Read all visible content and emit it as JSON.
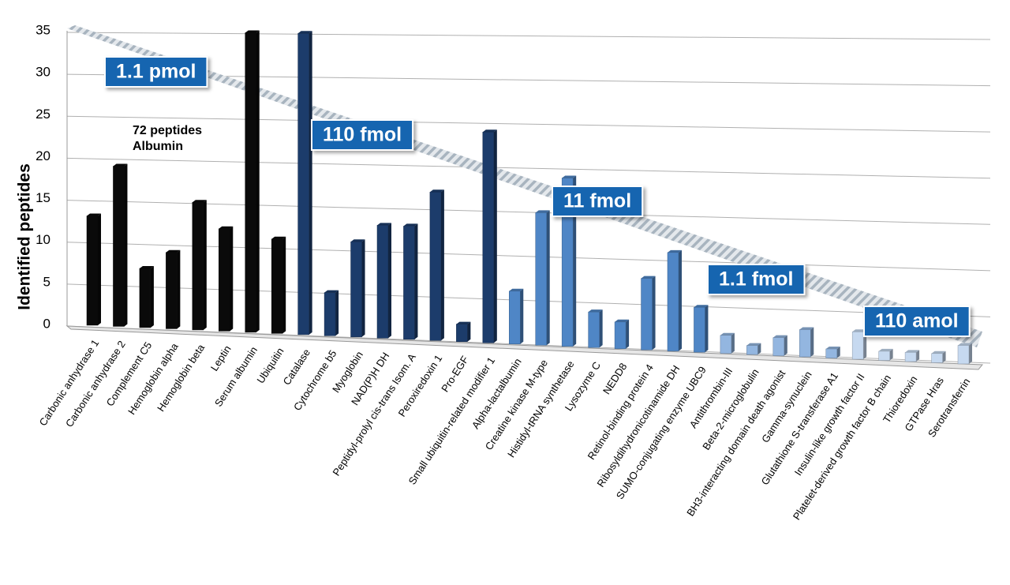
{
  "chart_data": {
    "type": "bar3d",
    "y_label": "Identified peptides",
    "annotation_lines": [
      "72 peptides",
      "Albumin"
    ],
    "categories": [
      "Carbonic anhydrase 1",
      "Carbonic anhydrase 2",
      "Complement C5",
      "Hemoglobin alpha",
      "Hemoglobin beta",
      "Leptin",
      "Serum albumin",
      "Ubiquitin",
      "Catalase",
      "Cytochrome b5",
      "Myoglobin",
      "NAD(P)H DH",
      "Peptidyl-prolyl cis-trans Isom. A",
      "Peroxiredoxin 1",
      "Pro-EGF",
      "Small ubiquitin-related modifier 1",
      "Alpha-lactalbumin",
      "Creatine kinase M-type",
      "Histidyl-tRNA synthetase",
      "Lysozyme C",
      "NEDD8",
      "Retinol-binding protein 4",
      "Ribosyldihydronicotinamide DH",
      "SUMO-conjugating enzyme UBC9",
      "Antithrombin-III",
      "Beta-2-microglobulin",
      "BH3-interacting domain death agonist",
      "Gamma-synuclein",
      "Glutathione S-transferase A1",
      "Insulin-like growth factor II",
      "Platelet-derived growth factor B chain",
      "Thioredoxin",
      "GTPase Hras",
      "Serotransferrin"
    ],
    "series": [
      {
        "name": "1.1 pmol",
        "color": "#0a0a0a",
        "values": [
          13,
          19,
          7,
          9,
          15,
          12,
          35,
          11,
          null,
          null,
          null,
          null,
          null,
          null,
          null,
          null,
          null,
          null,
          null,
          null,
          null,
          null,
          null,
          null,
          null,
          null,
          null,
          null,
          null,
          null,
          null,
          null,
          null,
          null
        ]
      },
      {
        "name": "110 fmol",
        "color": "#1c3c6b",
        "values": [
          null,
          null,
          null,
          null,
          null,
          null,
          null,
          null,
          35,
          5,
          11,
          13,
          13,
          17,
          2,
          24,
          null,
          null,
          null,
          null,
          null,
          null,
          null,
          null,
          null,
          null,
          null,
          null,
          null,
          null,
          null,
          null,
          null,
          null
        ]
      },
      {
        "name": "11 fmol",
        "color": "#4f86c6",
        "values": [
          null,
          null,
          null,
          null,
          null,
          null,
          null,
          null,
          null,
          null,
          null,
          null,
          null,
          null,
          null,
          null,
          6,
          15,
          19,
          4,
          3,
          8,
          11,
          5,
          null,
          null,
          null,
          null,
          null,
          null,
          null,
          null,
          null,
          null
        ]
      },
      {
        "name": "1.1 fmol",
        "color": "#93b6e0",
        "values": [
          null,
          null,
          null,
          null,
          null,
          null,
          null,
          null,
          null,
          null,
          null,
          null,
          null,
          null,
          null,
          null,
          null,
          null,
          null,
          null,
          null,
          null,
          null,
          null,
          2,
          1,
          2,
          3,
          1,
          null,
          null,
          null,
          null,
          null
        ]
      },
      {
        "name": "110 amol",
        "color": "#c6d9f0",
        "values": [
          null,
          null,
          null,
          null,
          null,
          null,
          null,
          null,
          null,
          null,
          null,
          null,
          null,
          null,
          null,
          null,
          null,
          null,
          null,
          null,
          null,
          null,
          null,
          null,
          null,
          null,
          null,
          null,
          null,
          3,
          1,
          1,
          1,
          2
        ]
      }
    ],
    "ylim": [
      0,
      35
    ],
    "yticks": [
      0,
      5,
      10,
      15,
      20,
      25,
      30,
      35
    ],
    "grid": true
  }
}
